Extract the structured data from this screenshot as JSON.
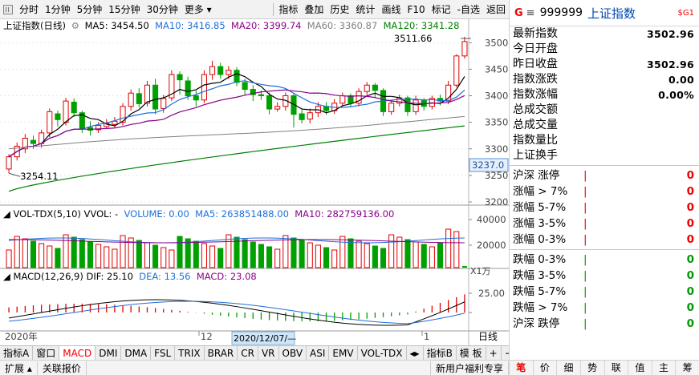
{
  "toolbar": {
    "periods": [
      "分时",
      "1分钟",
      "5分钟",
      "15分钟",
      "30分钟",
      "更多 ▾"
    ],
    "actions": [
      "指标",
      "叠加",
      "历史",
      "统计",
      "画线",
      "F10",
      "标记",
      "-自选",
      "返回"
    ]
  },
  "main": {
    "title": "上证指数(日线)",
    "ma": [
      {
        "label": "MA5: 3454.50",
        "color": "#000000"
      },
      {
        "label": "MA10: 3416.85",
        "color": "#1e6fd9"
      },
      {
        "label": "MA20: 3399.74",
        "color": "#8b008b"
      },
      {
        "label": "MA60: 3360.87",
        "color": "#808080"
      },
      {
        "label": "MA120: 3341.28",
        "color": "#008000"
      }
    ],
    "high_label": "3511.66",
    "low_label": "3254.11",
    "price_axis": [
      "3500",
      "3450",
      "3400",
      "3350",
      "3300",
      "3250",
      "3200"
    ],
    "current_price": "3237.0"
  },
  "volume": {
    "title": "VOL-TDX(5,10)",
    "vvol": "VVOL: -",
    "volume_label": "VOLUME: 0.00",
    "ma5": "MA5: 263851488.00",
    "ma10": "MA10: 282759136.00",
    "axis": [
      "40000",
      "20000"
    ],
    "unit": "X1万"
  },
  "macd": {
    "title": "MACD(12,26,9)",
    "dif": "DIF: 25.10",
    "dea": "DEA: 13.56",
    "macd": "MACD: 23.08",
    "axis": [
      "25.00"
    ]
  },
  "xaxis": {
    "year": "2020年",
    "m12": "12",
    "m1": "1",
    "cursor_date": "2020/12/07/—",
    "period": "日线"
  },
  "indicator_tabs": [
    "指标A",
    "窗口",
    "MACD",
    "DMI",
    "DMA",
    "FSL",
    "TRIX",
    "BRAR",
    "CR",
    "VR",
    "OBV",
    "ASI",
    "EMV",
    "VOL-TDX",
    "◂▸",
    "指标B",
    "模 板",
    "+",
    "−"
  ],
  "status": {
    "expand": "扩展 ▴",
    "related": "关联报价",
    "promo": "新用户福利专享"
  },
  "quote_panel": {
    "badge": "G",
    "menu_icon": "≡",
    "code": "999999",
    "name": "上证指数",
    "tag": "$G1",
    "rows": [
      {
        "label": "最新指数",
        "value": "3502.96"
      },
      {
        "label": "今日开盘",
        "value": ""
      },
      {
        "label": "昨日收盘",
        "value": "3502.96"
      },
      {
        "label": "指数涨跌",
        "value": "0.00"
      },
      {
        "label": "指数涨幅",
        "value": "0.00%"
      },
      {
        "label": "总成交额",
        "value": ""
      },
      {
        "label": "总成交量",
        "value": ""
      },
      {
        "label": "指数量比",
        "value": ""
      },
      {
        "label": "上证换手",
        "value": ""
      }
    ],
    "up_rows": [
      {
        "label": "沪深 涨停",
        "count": "0"
      },
      {
        "label": "涨幅 > 7%",
        "count": "0"
      },
      {
        "label": "涨幅 5-7%",
        "count": "0"
      },
      {
        "label": "涨幅 3-5%",
        "count": "0"
      },
      {
        "label": "涨幅 0-3%",
        "count": "0"
      }
    ],
    "down_rows": [
      {
        "label": "跌幅 0-3%",
        "count": "0"
      },
      {
        "label": "跌幅 3-5%",
        "count": "0"
      },
      {
        "label": "跌幅 5-7%",
        "count": "0"
      },
      {
        "label": "跌幅 > 7%",
        "count": "0"
      },
      {
        "label": "沪深 跌停",
        "count": "0"
      }
    ],
    "bottom_tabs": [
      "笔",
      "价",
      "细",
      "势",
      "联",
      "值",
      "主",
      "筹"
    ]
  },
  "colors": {
    "up": "#e00000",
    "down": "#00a000",
    "accent_blue": "#0047b3"
  },
  "chart_data": {
    "type": "candlestick",
    "ylim": [
      3200,
      3520
    ],
    "candles": [
      [
        3262,
        3285,
        3254,
        3290
      ],
      [
        3285,
        3305,
        3278,
        3312
      ],
      [
        3300,
        3320,
        3292,
        3328
      ],
      [
        3316,
        3310,
        3300,
        3325
      ],
      [
        3310,
        3330,
        3302,
        3336
      ],
      [
        3330,
        3370,
        3322,
        3376
      ],
      [
        3366,
        3355,
        3342,
        3372
      ],
      [
        3350,
        3390,
        3344,
        3396
      ],
      [
        3388,
        3368,
        3360,
        3395
      ],
      [
        3368,
        3338,
        3330,
        3372
      ],
      [
        3340,
        3335,
        3325,
        3352
      ],
      [
        3336,
        3344,
        3330,
        3350
      ],
      [
        3342,
        3348,
        3338,
        3356
      ],
      [
        3346,
        3352,
        3340,
        3360
      ],
      [
        3350,
        3380,
        3344,
        3386
      ],
      [
        3380,
        3405,
        3372,
        3412
      ],
      [
        3404,
        3385,
        3378,
        3414
      ],
      [
        3386,
        3420,
        3380,
        3428
      ],
      [
        3420,
        3375,
        3365,
        3432
      ],
      [
        3376,
        3395,
        3368,
        3402
      ],
      [
        3396,
        3440,
        3390,
        3448
      ],
      [
        3440,
        3430,
        3402,
        3446
      ],
      [
        3428,
        3400,
        3392,
        3436
      ],
      [
        3400,
        3392,
        3380,
        3410
      ],
      [
        3392,
        3440,
        3386,
        3448
      ],
      [
        3440,
        3455,
        3430,
        3466
      ],
      [
        3455,
        3440,
        3432,
        3462
      ],
      [
        3440,
        3448,
        3432,
        3456
      ],
      [
        3448,
        3425,
        3418,
        3454
      ],
      [
        3425,
        3412,
        3402,
        3432
      ],
      [
        3412,
        3402,
        3390,
        3420
      ],
      [
        3402,
        3400,
        3392,
        3410
      ],
      [
        3400,
        3375,
        3365,
        3406
      ],
      [
        3375,
        3380,
        3370,
        3388
      ],
      [
        3380,
        3400,
        3372,
        3406
      ],
      [
        3400,
        3365,
        3340,
        3404
      ],
      [
        3366,
        3355,
        3348,
        3374
      ],
      [
        3356,
        3368,
        3348,
        3376
      ],
      [
        3368,
        3380,
        3360,
        3388
      ],
      [
        3380,
        3372,
        3364,
        3388
      ],
      [
        3372,
        3386,
        3366,
        3394
      ],
      [
        3386,
        3400,
        3380,
        3406
      ],
      [
        3400,
        3386,
        3378,
        3404
      ],
      [
        3386,
        3408,
        3380,
        3414
      ],
      [
        3408,
        3420,
        3402,
        3426
      ],
      [
        3420,
        3410,
        3396,
        3424
      ],
      [
        3410,
        3370,
        3362,
        3414
      ],
      [
        3370,
        3386,
        3364,
        3392
      ],
      [
        3386,
        3396,
        3380,
        3402
      ],
      [
        3396,
        3370,
        3362,
        3400
      ],
      [
        3370,
        3392,
        3364,
        3400
      ],
      [
        3392,
        3380,
        3372,
        3396
      ],
      [
        3380,
        3395,
        3374,
        3400
      ],
      [
        3395,
        3390,
        3382,
        3402
      ],
      [
        3390,
        3420,
        3384,
        3428
      ],
      [
        3420,
        3475,
        3416,
        3478
      ],
      [
        3475,
        3502,
        3470,
        3511
      ]
    ]
  }
}
